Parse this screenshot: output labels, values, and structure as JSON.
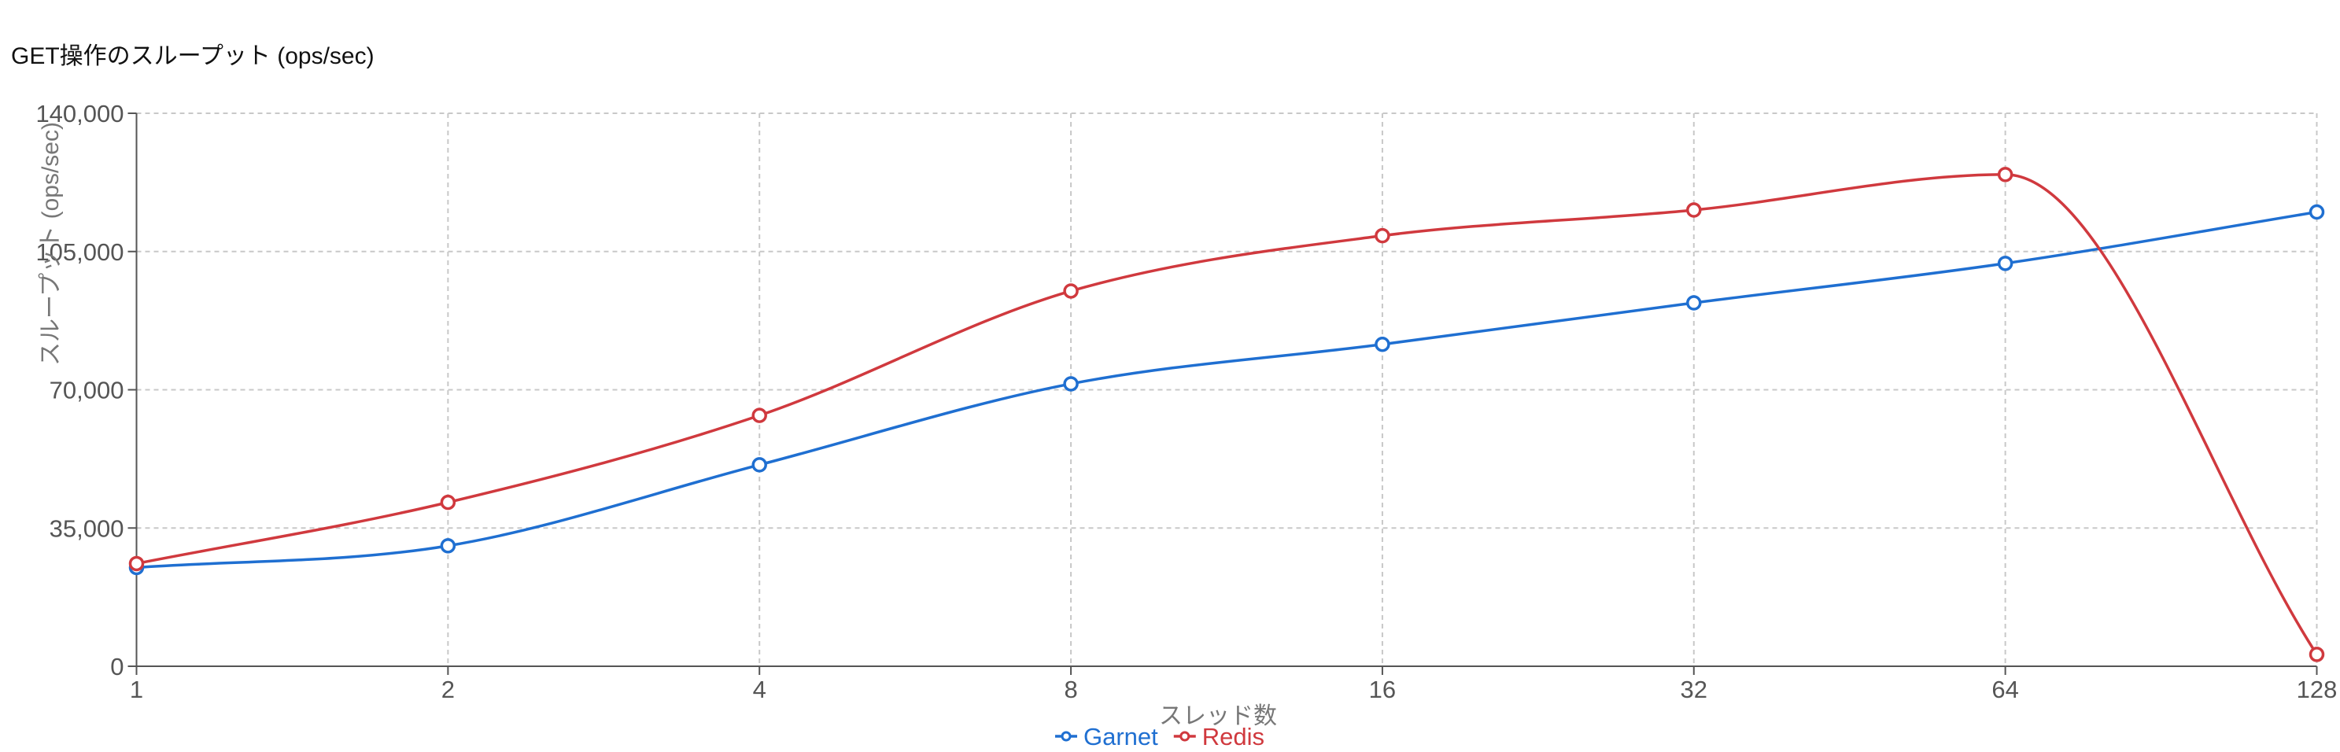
{
  "chart_data": {
    "type": "line",
    "title": "GET操作のスループット (ops/sec)",
    "xlabel": "スレッド数",
    "ylabel": "スループット (ops/sec)",
    "x_scale": "log2 (categorical spacing)",
    "categories": [
      "1",
      "2",
      "4",
      "8",
      "16",
      "32",
      "64",
      "128"
    ],
    "ylim": [
      0,
      140000
    ],
    "yticks": [
      "0",
      "35,000",
      "70,000",
      "105,000",
      "140,000"
    ],
    "ytick_values": [
      0,
      35000,
      70000,
      105000,
      140000
    ],
    "grid": true,
    "legend_position": "bottom",
    "series": [
      {
        "name": "Garnet",
        "color": "#1f6fd1",
        "values": [
          25000,
          30500,
          51000,
          71500,
          81500,
          92000,
          102000,
          115000
        ]
      },
      {
        "name": "Redis",
        "color": "#d0393e",
        "values": [
          26000,
          41500,
          63500,
          95000,
          109000,
          115500,
          124500,
          3000
        ]
      }
    ]
  }
}
